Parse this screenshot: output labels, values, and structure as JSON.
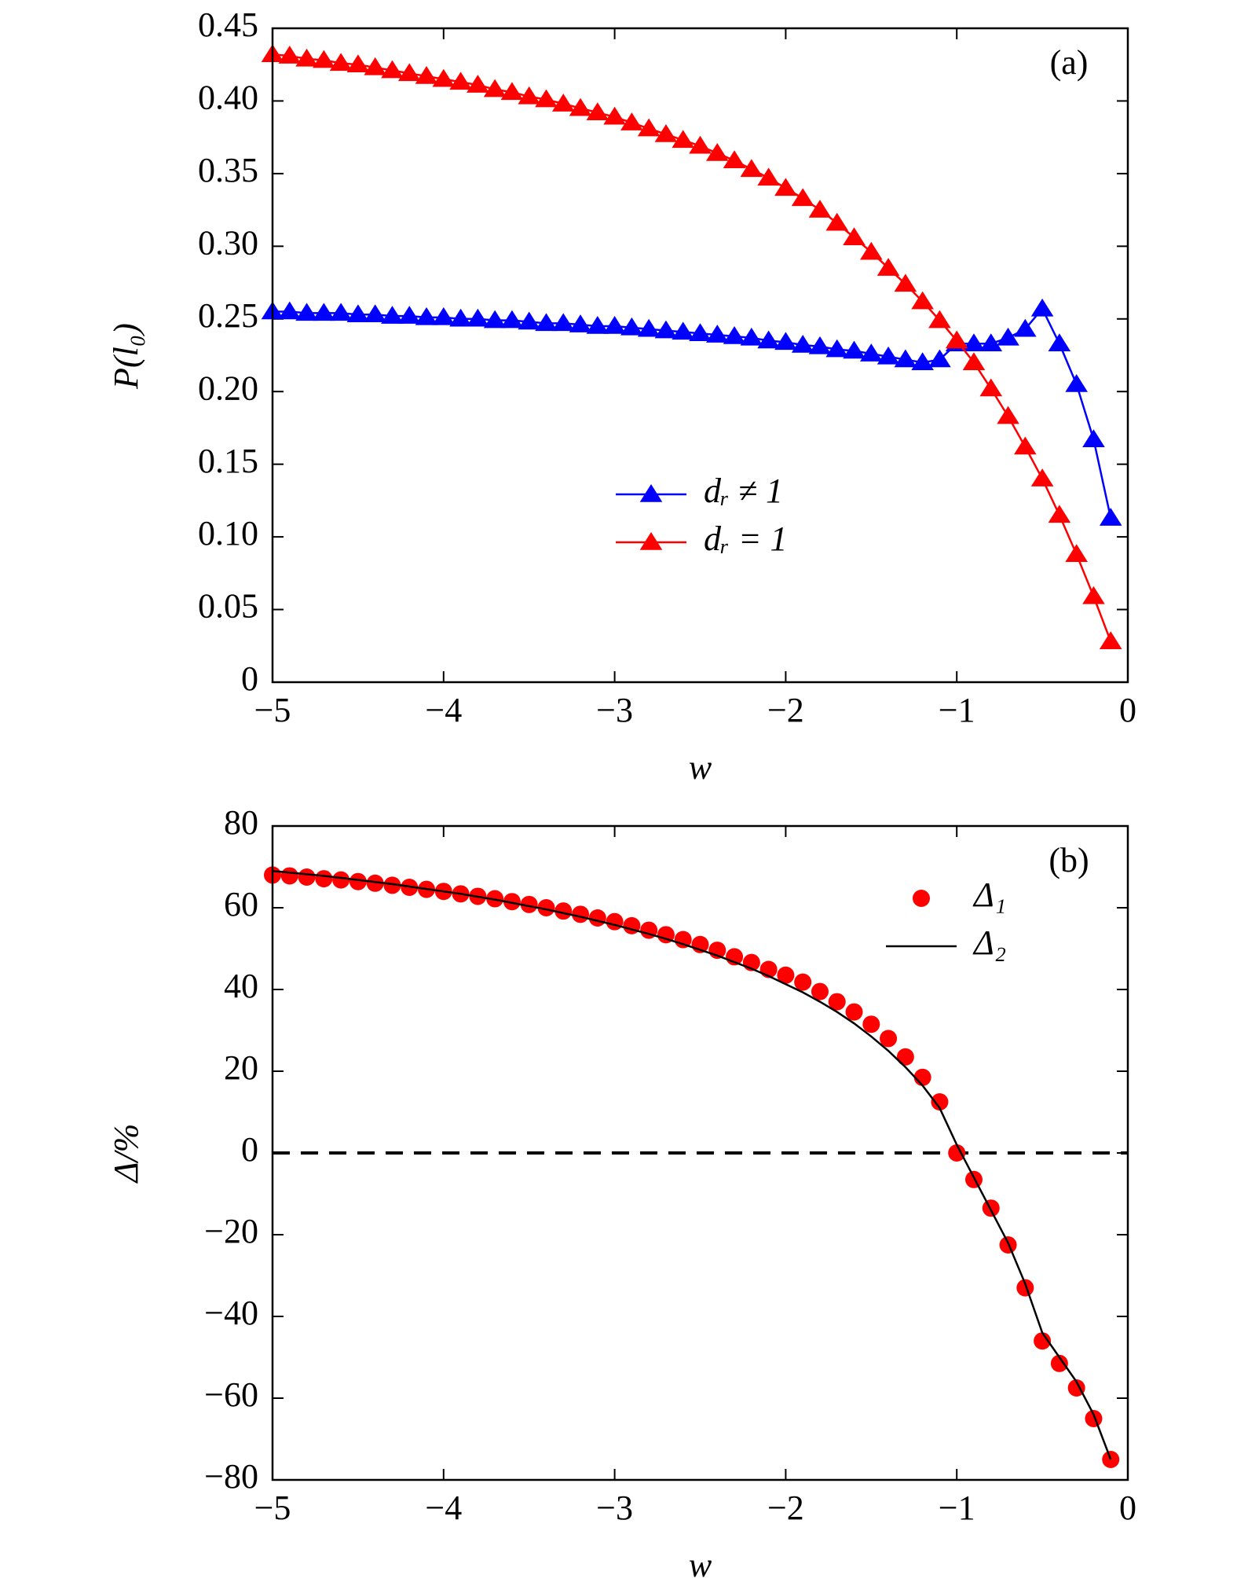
{
  "chart_data": [
    {
      "type": "line",
      "panel_label": "(a)",
      "xlabel": "w",
      "ylabel": "P(l₀)",
      "x": [
        -5.0,
        -4.9,
        -4.8,
        -4.7,
        -4.6,
        -4.5,
        -4.4,
        -4.3,
        -4.2,
        -4.1,
        -4.0,
        -3.9,
        -3.8,
        -3.7,
        -3.6,
        -3.5,
        -3.4,
        -3.3,
        -3.2,
        -3.1,
        -3.0,
        -2.9,
        -2.8,
        -2.7,
        -2.6,
        -2.5,
        -2.4,
        -2.3,
        -2.2,
        -2.1,
        -2.0,
        -1.9,
        -1.8,
        -1.7,
        -1.6,
        -1.5,
        -1.4,
        -1.3,
        -1.2,
        -1.1,
        -1.0,
        -0.9,
        -0.8,
        -0.7,
        -0.6,
        -0.5,
        -0.4,
        -0.3,
        -0.2,
        -0.1
      ],
      "xlim": [
        -5,
        0
      ],
      "ylim": [
        0,
        0.45
      ],
      "xticks": [
        {
          "value": -5,
          "label": "−5"
        },
        {
          "value": -4,
          "label": "−4"
        },
        {
          "value": -3,
          "label": "−3"
        },
        {
          "value": -2,
          "label": "−2"
        },
        {
          "value": -1,
          "label": "−1"
        },
        0
      ],
      "yticks": [
        0,
        0.05,
        {
          "value": 0.1,
          "label": "0.10"
        },
        0.15,
        {
          "value": 0.2,
          "label": "0.20"
        },
        0.25,
        {
          "value": 0.3,
          "label": "0.30"
        },
        0.35,
        {
          "value": 0.4,
          "label": "0.40"
        },
        0.45
      ],
      "series": [
        {
          "name": "dᵣ ≠ 1",
          "color": "#0000ff",
          "marker": "triangle",
          "line": true,
          "values": [
            0.255,
            0.255,
            0.254,
            0.254,
            0.254,
            0.253,
            0.253,
            0.252,
            0.252,
            0.251,
            0.251,
            0.25,
            0.25,
            0.249,
            0.249,
            0.248,
            0.247,
            0.247,
            0.246,
            0.245,
            0.245,
            0.244,
            0.243,
            0.242,
            0.241,
            0.24,
            0.239,
            0.238,
            0.237,
            0.235,
            0.234,
            0.232,
            0.231,
            0.229,
            0.228,
            0.226,
            0.224,
            0.222,
            0.22,
            0.222,
            0.233,
            0.233,
            0.233,
            0.237,
            0.243,
            0.257,
            0.233,
            0.205,
            0.167,
            0.113
          ]
        },
        {
          "name": "dᵣ = 1",
          "color": "#ff0000",
          "marker": "triangle",
          "line": true,
          "values": [
            0.432,
            0.431,
            0.429,
            0.428,
            0.426,
            0.425,
            0.423,
            0.421,
            0.419,
            0.417,
            0.415,
            0.413,
            0.411,
            0.408,
            0.406,
            0.403,
            0.401,
            0.398,
            0.395,
            0.392,
            0.389,
            0.385,
            0.381,
            0.377,
            0.373,
            0.369,
            0.364,
            0.359,
            0.353,
            0.347,
            0.34,
            0.333,
            0.325,
            0.316,
            0.306,
            0.296,
            0.285,
            0.274,
            0.262,
            0.249,
            0.235,
            0.22,
            0.202,
            0.183,
            0.162,
            0.14,
            0.115,
            0.088,
            0.059,
            0.028
          ]
        }
      ]
    },
    {
      "type": "line",
      "panel_label": "(b)",
      "xlabel": "w",
      "ylabel": "Δ/%",
      "x": [
        -5.0,
        -4.9,
        -4.8,
        -4.7,
        -4.6,
        -4.5,
        -4.4,
        -4.3,
        -4.2,
        -4.1,
        -4.0,
        -3.9,
        -3.8,
        -3.7,
        -3.6,
        -3.5,
        -3.4,
        -3.3,
        -3.2,
        -3.1,
        -3.0,
        -2.9,
        -2.8,
        -2.7,
        -2.6,
        -2.5,
        -2.4,
        -2.3,
        -2.2,
        -2.1,
        -2.0,
        -1.9,
        -1.8,
        -1.7,
        -1.6,
        -1.5,
        -1.4,
        -1.3,
        -1.2,
        -1.1,
        -1.0,
        -0.9,
        -0.8,
        -0.7,
        -0.6,
        -0.5,
        -0.4,
        -0.3,
        -0.2,
        -0.1
      ],
      "xlim": [
        -5,
        0
      ],
      "ylim": [
        -80,
        80
      ],
      "reference_line": 0,
      "xticks": [
        {
          "value": -5,
          "label": "−5"
        },
        {
          "value": -4,
          "label": "−4"
        },
        {
          "value": -3,
          "label": "−3"
        },
        {
          "value": -2,
          "label": "−2"
        },
        {
          "value": -1,
          "label": "−1"
        },
        0
      ],
      "yticks": [
        {
          "value": -80,
          "label": "−80"
        },
        {
          "value": -60,
          "label": "−60"
        },
        {
          "value": -40,
          "label": "−40"
        },
        {
          "value": -20,
          "label": "−20"
        },
        0,
        20,
        40,
        60,
        80
      ],
      "series": [
        {
          "name": "Δ₁",
          "color": "#ff0000",
          "marker": "circle",
          "line": false,
          "values": [
            68,
            67.8,
            67.5,
            67.1,
            66.8,
            66.4,
            66,
            65.5,
            65,
            64.5,
            64,
            63.4,
            62.8,
            62.2,
            61.5,
            60.8,
            60,
            59.2,
            58.4,
            57.5,
            56.6,
            55.6,
            54.5,
            53.4,
            52.2,
            51,
            49.6,
            48,
            46.6,
            44.9,
            43.5,
            41.8,
            39.5,
            37,
            34.5,
            31.5,
            28,
            23.5,
            18.5,
            12.5,
            0,
            -6.5,
            -13.5,
            -22.5,
            -33,
            -46,
            -51.5,
            -57.5,
            -65,
            -75
          ]
        },
        {
          "name": "Δ₂",
          "color": "#000000",
          "marker": "none",
          "line": true,
          "values": [
            69,
            68.6,
            68.2,
            67.8,
            67.3,
            66.8,
            66.3,
            65.8,
            65.2,
            64.6,
            64,
            63.4,
            62.7,
            62,
            61.2,
            60.4,
            59.6,
            58.7,
            57.8,
            56.8,
            55.8,
            54.7,
            53.6,
            52.4,
            51.1,
            49.7,
            48.3,
            46.7,
            45.1,
            43.3,
            41.3,
            39.3,
            37,
            34.5,
            31.7,
            28.5,
            25,
            21,
            16.5,
            11,
            2,
            -6,
            -14,
            -22,
            -32,
            -44,
            -50,
            -56,
            -64,
            -75
          ]
        }
      ]
    }
  ]
}
